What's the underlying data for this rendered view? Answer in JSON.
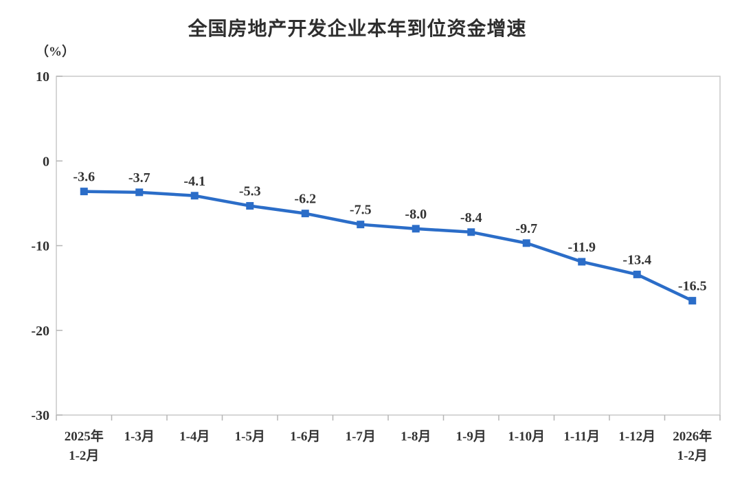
{
  "chart_data": {
    "type": "line",
    "title": "全国房地产开发企业本年到位资金增速",
    "unit_label": "（%）",
    "categories": [
      [
        "2025年",
        "1-2月"
      ],
      [
        "1-3月"
      ],
      [
        "1-4月"
      ],
      [
        "1-5月"
      ],
      [
        "1-6月"
      ],
      [
        "1-7月"
      ],
      [
        "1-8月"
      ],
      [
        "1-9月"
      ],
      [
        "1-10月"
      ],
      [
        "1-11月"
      ],
      [
        "1-12月"
      ],
      [
        "2026年",
        "1-2月"
      ]
    ],
    "values": [
      -3.6,
      -3.7,
      -4.1,
      -5.3,
      -6.2,
      -7.5,
      -8.0,
      -8.4,
      -9.7,
      -11.9,
      -13.4,
      -16.5
    ],
    "data_labels": [
      "-3.6",
      "-3.7",
      "-4.1",
      "-5.3",
      "-6.2",
      "-7.5",
      "-8.0",
      "-8.4",
      "-9.7",
      "-11.9",
      "-13.4",
      "-16.5"
    ],
    "xlabel": "",
    "ylabel": "（%）",
    "ylim": [
      -30,
      10
    ],
    "yticks": [
      10,
      0,
      -10,
      -20,
      -30
    ],
    "grid": false,
    "legend": "none",
    "marker": "square"
  },
  "colors": {
    "line": "#2b6dc8",
    "marker": "#2b6dc8",
    "plot_border": "#c9c9c9",
    "tick": "#b5b5b5",
    "text": "#333333",
    "background": "#ffffff"
  }
}
